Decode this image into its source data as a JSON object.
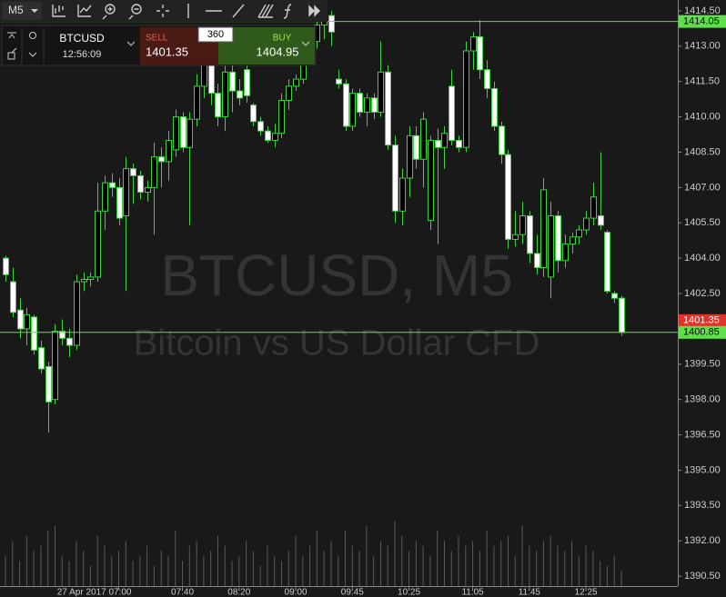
{
  "toolbar": {
    "timeframe": "M5"
  },
  "trade_panel": {
    "symbol": "BTCUSD",
    "time": "12:56:09",
    "sell_label": "SELL",
    "sell_price": "1401.35",
    "volume": "360",
    "buy_label": "BUY",
    "buy_price": "1404.95"
  },
  "chart_data": {
    "type": "candlestick",
    "watermark": "BTCUSD, M5",
    "subtitle": "Bitcoin vs US Dollar CFD",
    "categories": [
      null,
      null,
      null,
      null,
      null,
      null,
      null,
      null,
      null,
      null,
      null,
      null,
      null,
      null,
      null,
      null,
      "27 Apr 2017 07:00",
      null,
      null,
      null,
      null,
      null,
      null,
      null,
      null,
      "07:40",
      null,
      null,
      null,
      null,
      null,
      null,
      null,
      "08:20",
      null,
      null,
      null,
      null,
      null,
      null,
      null,
      "09:00",
      null,
      null,
      null,
      null,
      null,
      null,
      null,
      "09:45",
      null,
      null,
      null,
      null,
      null,
      null,
      null,
      "10:25",
      null,
      null,
      null,
      null,
      null,
      null,
      null,
      null,
      "11:05",
      null,
      null,
      null,
      null,
      null,
      null,
      null,
      "11:45",
      null,
      null,
      null,
      null,
      null,
      null,
      null,
      "12:25",
      null,
      null,
      null,
      null,
      null
    ],
    "open": [
      1404.0,
      1403.0,
      1401.8,
      1401.0,
      1401.5,
      1400.2,
      1399.4,
      1398.0,
      1400.9,
      1400.6,
      1400.3,
      1403.0,
      1403.1,
      1403.2,
      1406.0,
      1407.2,
      1407.0,
      1405.8,
      1407.8,
      1407.5,
      1406.8,
      1407.0,
      1408.3,
      1408.1,
      1408.6,
      1410.0,
      1408.7,
      1409.9,
      1411.3,
      1412.2,
      1411.0,
      1410.0,
      1411.9,
      1411.1,
      1412.0,
      1410.5,
      1409.8,
      1409.4,
      1409.0,
      1409.3,
      1410.7,
      1411.3,
      1411.6,
      1412.5,
      1413.2,
      1413.9,
      1414.3,
      1411.6,
      1411.4,
      1409.6,
      1411.0,
      1410.2,
      1410.8,
      1410.2,
      1411.9,
      1408.8,
      1406.0,
      1407.4,
      1409.2,
      1408.2,
      1405.6,
      1409.0,
      1408.7,
      1411.3,
      1409.0,
      1408.7,
      1412.8,
      1413.4,
      1412.0,
      1411.2,
      1409.6,
      1408.4,
      1404.8,
      1405.0,
      1405.8,
      1404.2,
      1403.6,
      1403.2,
      1405.8,
      1403.9,
      1404.6,
      1404.9,
      1405.2,
      1405.7,
      1405.8,
      1405.1,
      1402.5,
      1402.3
    ],
    "high": [
      1404.1,
      1403.6,
      1402.3,
      1401.9,
      1401.6,
      1400.5,
      1399.6,
      1401.2,
      1401.4,
      1401.0,
      1403.3,
      1403.4,
      1403.4,
      1407.2,
      1407.5,
      1407.6,
      1407.4,
      1408.3,
      1408.0,
      1407.7,
      1407.3,
      1408.9,
      1408.7,
      1409.4,
      1410.3,
      1410.2,
      1410.2,
      1411.8,
      1412.7,
      1413.4,
      1411.4,
      1412.4,
      1412.6,
      1411.6,
      1413.0,
      1410.6,
      1410.0,
      1409.6,
      1409.7,
      1411.0,
      1411.6,
      1411.8,
      1413.2,
      1413.6,
      1414.3,
      1414.5,
      1414.5,
      1412.0,
      1411.6,
      1411.2,
      1411.2,
      1411.0,
      1411.0,
      1413.2,
      1412.2,
      1409.2,
      1407.8,
      1409.6,
      1409.6,
      1410.2,
      1409.2,
      1409.5,
      1409.6,
      1412.0,
      1409.2,
      1413.2,
      1413.6,
      1414.1,
      1412.4,
      1411.5,
      1409.8,
      1408.6,
      1406.0,
      1406.4,
      1406.0,
      1405.0,
      1407.4,
      1406.4,
      1406.0,
      1405.0,
      1405.1,
      1405.4,
      1406.0,
      1407.2,
      1408.5,
      1405.2,
      1402.6,
      1402.4
    ],
    "low": [
      1403.0,
      1401.5,
      1400.6,
      1400.3,
      1399.9,
      1399.1,
      1396.6,
      1397.8,
      1400.3,
      1399.8,
      1400.1,
      1402.6,
      1402.8,
      1403.0,
      1405.2,
      1406.6,
      1405.4,
      1402.6,
      1406.3,
      1406.5,
      1406.4,
      1405.0,
      1407.0,
      1407.3,
      1408.3,
      1408.5,
      1405.4,
      1409.6,
      1410.8,
      1410.5,
      1409.6,
      1409.4,
      1410.2,
      1410.5,
      1410.6,
      1409.6,
      1409.2,
      1408.9,
      1408.7,
      1409.1,
      1410.3,
      1411.1,
      1411.4,
      1412.2,
      1412.9,
      1413.3,
      1413.0,
      1411.2,
      1409.4,
      1409.4,
      1410.0,
      1409.6,
      1409.9,
      1410.0,
      1408.6,
      1405.5,
      1405.4,
      1406.6,
      1407.8,
      1407.0,
      1405.2,
      1404.6,
      1407.8,
      1408.8,
      1408.5,
      1408.5,
      1412.0,
      1411.6,
      1410.8,
      1409.4,
      1408.0,
      1404.4,
      1404.5,
      1404.6,
      1403.8,
      1403.3,
      1403.2,
      1402.3,
      1403.4,
      1403.6,
      1404.2,
      1404.6,
      1405.0,
      1405.4,
      1405.2,
      1402.5,
      1402.1,
      1400.7
    ],
    "close": [
      1403.3,
      1401.7,
      1401.0,
      1401.6,
      1400.1,
      1399.3,
      1397.9,
      1400.9,
      1400.6,
      1400.3,
      1403.0,
      1403.1,
      1403.2,
      1406.0,
      1407.2,
      1407.0,
      1405.7,
      1407.8,
      1407.5,
      1406.8,
      1407.0,
      1408.3,
      1408.1,
      1409.0,
      1410.0,
      1408.7,
      1409.9,
      1411.3,
      1412.2,
      1411.0,
      1410.0,
      1411.9,
      1411.1,
      1410.8,
      1410.9,
      1409.8,
      1409.4,
      1409.0,
      1409.3,
      1410.7,
      1411.3,
      1411.6,
      1412.5,
      1413.2,
      1413.9,
      1414.3,
      1413.6,
      1411.4,
      1409.6,
      1411.0,
      1410.2,
      1410.8,
      1410.2,
      1411.9,
      1408.8,
      1406.0,
      1407.4,
      1409.2,
      1408.2,
      1409.9,
      1409.0,
      1408.7,
      1409.3,
      1409.0,
      1408.7,
      1412.8,
      1413.4,
      1412.0,
      1411.2,
      1409.6,
      1408.4,
      1404.8,
      1405.0,
      1405.8,
      1404.2,
      1403.6,
      1406.9,
      1405.8,
      1403.9,
      1404.6,
      1404.9,
      1405.2,
      1405.7,
      1406.6,
      1405.4,
      1402.6,
      1402.3,
      1400.85
    ],
    "volumes": [
      30,
      45,
      25,
      50,
      35,
      40,
      55,
      60,
      30,
      25,
      45,
      35,
      20,
      50,
      40,
      30,
      35,
      45,
      25,
      30,
      40,
      20,
      35,
      30,
      55,
      25,
      40,
      45,
      30,
      35,
      50,
      40,
      25,
      30,
      45,
      35,
      20,
      40,
      30,
      25,
      35,
      50,
      30,
      40,
      55,
      35,
      45,
      30,
      55,
      40,
      35,
      60,
      30,
      45,
      40,
      65,
      50,
      35,
      45,
      40,
      30,
      55,
      45,
      35,
      50,
      40,
      45,
      35,
      55,
      40,
      45,
      50,
      30,
      60,
      40,
      35,
      45,
      50,
      40,
      35,
      45,
      30,
      40,
      35,
      25,
      20,
      30,
      15
    ],
    "ylim": [
      1390.08,
      1414.96
    ],
    "yticks": [
      {
        "value": 1414.5,
        "label": "1414.50"
      },
      {
        "value": 1413,
        "label": "1413.00"
      },
      {
        "value": 1411.5,
        "label": "1411.50"
      },
      {
        "value": 1410,
        "label": "1410.00"
      },
      {
        "value": 1408.5,
        "label": "1408.50"
      },
      {
        "value": 1407,
        "label": "1407.00"
      },
      {
        "value": 1405.5,
        "label": "1405.50"
      },
      {
        "value": 1404,
        "label": "1404.00"
      },
      {
        "value": 1402.5,
        "label": "1402.50"
      },
      {
        "value": 1399.5,
        "label": "1399.50"
      },
      {
        "value": 1398,
        "label": "1398.00"
      },
      {
        "value": 1396.5,
        "label": "1396.50"
      },
      {
        "value": 1395,
        "label": "1395.00"
      },
      {
        "value": 1393.5,
        "label": "1393.50"
      },
      {
        "value": 1392,
        "label": "1392.00"
      },
      {
        "value": 1390.5,
        "label": "1390.50"
      }
    ],
    "price_lines": [
      1414.05,
      1400.85
    ],
    "line_color": "#5ee04a",
    "ask_tag": 1401.35,
    "ask_color": "#e0332b",
    "candle_color": "#3fd43f",
    "bull_fill": "#000000",
    "bear_fill": "#ffffff",
    "volume_color": "#5a5a5a",
    "grid": false
  }
}
